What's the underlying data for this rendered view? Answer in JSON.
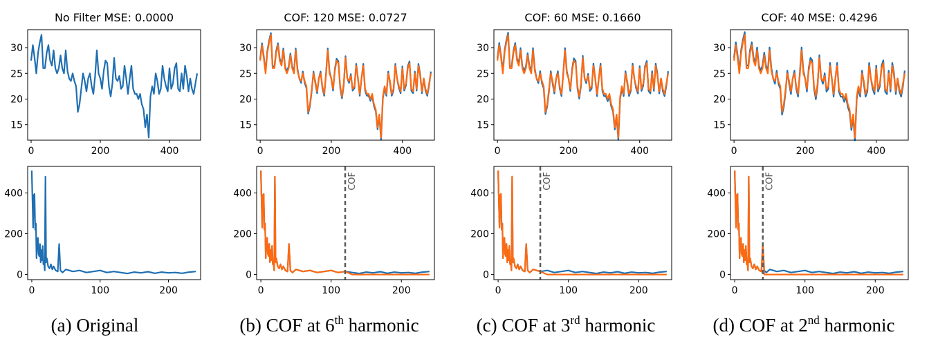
{
  "colors": {
    "original": "#1f6fb2",
    "filtered": "#ff6a10",
    "cof_line": "#5a5a5a",
    "axis": "#000000"
  },
  "chart_data": [
    {
      "type": "line",
      "panel": "a-time",
      "title": "No Filter MSE: 0.0000",
      "xlim": [
        -10,
        490
      ],
      "ylim": [
        12,
        33.5
      ],
      "xticks": [
        0,
        200,
        400
      ],
      "yticks": [
        15,
        20,
        25,
        30
      ],
      "series": [
        {
          "role": "original",
          "x": [
            0,
            5,
            10,
            15,
            20,
            25,
            30,
            35,
            40,
            45,
            50,
            55,
            60,
            65,
            70,
            75,
            80,
            85,
            90,
            95,
            100,
            105,
            110,
            115,
            120,
            125,
            130,
            135,
            140,
            145,
            150,
            155,
            160,
            165,
            170,
            175,
            180,
            185,
            190,
            195,
            200,
            205,
            210,
            215,
            220,
            225,
            230,
            235,
            240,
            245,
            250,
            255,
            260,
            265,
            270,
            275,
            280,
            285,
            290,
            295,
            300,
            305,
            310,
            315,
            320,
            325,
            330,
            335,
            340,
            345,
            350,
            355,
            360,
            365,
            370,
            375,
            380,
            385,
            390,
            395,
            400,
            405,
            410,
            415,
            420,
            425,
            430,
            435,
            440,
            445,
            450,
            455,
            460,
            465,
            470,
            475,
            480
          ],
          "y": [
            27.5,
            30.5,
            28,
            25,
            29,
            31,
            32.5,
            26,
            26,
            29,
            30.5,
            27.5,
            26.5,
            29.5,
            26,
            25,
            26,
            28.5,
            26,
            25,
            29.5,
            25.5,
            24,
            23.5,
            25,
            23.5,
            22.5,
            17.5,
            19,
            22,
            25,
            23.5,
            21.5,
            24,
            25,
            22.5,
            21,
            24.5,
            29.5,
            25,
            24,
            22,
            25.5,
            27.5,
            27,
            22.5,
            20.5,
            23,
            28,
            24,
            23.5,
            24.5,
            22,
            22.5,
            26.5,
            24,
            21,
            24,
            26.5,
            22,
            21,
            21,
            20,
            21,
            19,
            18,
            14.5,
            17,
            12.5,
            20.5,
            22.5,
            21,
            25,
            23.5,
            21,
            22,
            26.5,
            24,
            22.5,
            21.5,
            26,
            22,
            23,
            26,
            27,
            22,
            21.5,
            25,
            22,
            26.5,
            24.5,
            21.5,
            24,
            22,
            21,
            23,
            25
          ]
        }
      ]
    },
    {
      "type": "line",
      "panel": "a-freq",
      "xlim": [
        -6,
        247
      ],
      "ylim": [
        -25,
        530
      ],
      "xticks": [
        0,
        100,
        200
      ],
      "yticks": [
        0,
        200,
        400
      ],
      "series": [
        {
          "role": "original",
          "x": [
            0,
            2,
            3,
            4,
            5,
            6,
            7,
            8,
            9,
            10,
            11,
            12,
            13,
            14,
            15,
            16,
            17,
            18,
            19,
            20,
            21,
            22,
            24,
            26,
            28,
            30,
            32,
            35,
            38,
            40,
            42,
            45,
            50,
            60,
            70,
            80,
            90,
            100,
            110,
            120,
            130,
            140,
            150,
            160,
            170,
            180,
            190,
            200,
            210,
            220,
            230,
            240
          ],
          "y": [
            510,
            230,
            390,
            395,
            220,
            250,
            80,
            160,
            180,
            100,
            90,
            150,
            60,
            120,
            70,
            140,
            50,
            60,
            20,
            480,
            60,
            80,
            40,
            30,
            50,
            25,
            40,
            20,
            15,
            150,
            20,
            10,
            25,
            15,
            20,
            10,
            15,
            20,
            10,
            15,
            10,
            5,
            12,
            8,
            14,
            6,
            12,
            8,
            10,
            6,
            12,
            15
          ]
        }
      ]
    },
    {
      "type": "line",
      "panel": "b-time",
      "title": "COF: 120 MSE: 0.0727",
      "xlim": [
        -10,
        490
      ],
      "ylim": [
        12,
        33.5
      ],
      "xticks": [
        0,
        200,
        400
      ],
      "yticks": [
        15,
        20,
        25,
        30
      ],
      "series": [
        {
          "role": "original",
          "offset": 0.6
        },
        {
          "role": "filtered",
          "offset": 0.0
        }
      ]
    },
    {
      "type": "line",
      "panel": "b-freq",
      "xlim": [
        -6,
        247
      ],
      "ylim": [
        -25,
        530
      ],
      "xticks": [
        0,
        100,
        200
      ],
      "yticks": [
        0,
        200,
        400
      ],
      "cof": 120,
      "cof_label": "COF",
      "series": [
        {
          "role": "original"
        },
        {
          "role": "filtered"
        }
      ]
    },
    {
      "type": "line",
      "panel": "c-time",
      "title": "COF: 60 MSE: 0.1660",
      "xlim": [
        -10,
        490
      ],
      "ylim": [
        12,
        33.5
      ],
      "xticks": [
        0,
        200,
        400
      ],
      "yticks": [
        15,
        20,
        25,
        30
      ],
      "series": [
        {
          "role": "original",
          "offset": 0.7
        },
        {
          "role": "filtered",
          "offset": 0.0
        }
      ]
    },
    {
      "type": "line",
      "panel": "c-freq",
      "xlim": [
        -6,
        247
      ],
      "ylim": [
        -25,
        530
      ],
      "xticks": [
        0,
        100,
        200
      ],
      "yticks": [
        0,
        200,
        400
      ],
      "cof": 60,
      "cof_label": "COF",
      "series": [
        {
          "role": "original"
        },
        {
          "role": "filtered"
        }
      ]
    },
    {
      "type": "line",
      "panel": "d-time",
      "title": "COF: 40 MSE: 0.4296",
      "xlim": [
        -10,
        490
      ],
      "ylim": [
        12,
        33.5
      ],
      "xticks": [
        0,
        200,
        400
      ],
      "yticks": [
        15,
        20,
        25,
        30
      ],
      "series": [
        {
          "role": "original",
          "offset": 0.9
        },
        {
          "role": "filtered",
          "offset": 0.0
        }
      ]
    },
    {
      "type": "line",
      "panel": "d-freq",
      "xlim": [
        -6,
        247
      ],
      "ylim": [
        -25,
        530
      ],
      "xticks": [
        0,
        100,
        200
      ],
      "yticks": [
        0,
        200,
        400
      ],
      "cof": 40,
      "cof_label": "COF",
      "series": [
        {
          "role": "original"
        },
        {
          "role": "filtered"
        }
      ]
    }
  ],
  "captions": [
    {
      "prefix": "(a)",
      "text": "Original",
      "sup": "",
      "suffix": ""
    },
    {
      "prefix": "(b)",
      "text": "COF at 6",
      "sup": "th",
      "suffix": " harmonic"
    },
    {
      "prefix": "(c)",
      "text": "COF at 3",
      "sup": "rd",
      "suffix": " harmonic"
    },
    {
      "prefix": "(d)",
      "text": "COF at 2",
      "sup": "nd",
      "suffix": " harmonic"
    }
  ]
}
